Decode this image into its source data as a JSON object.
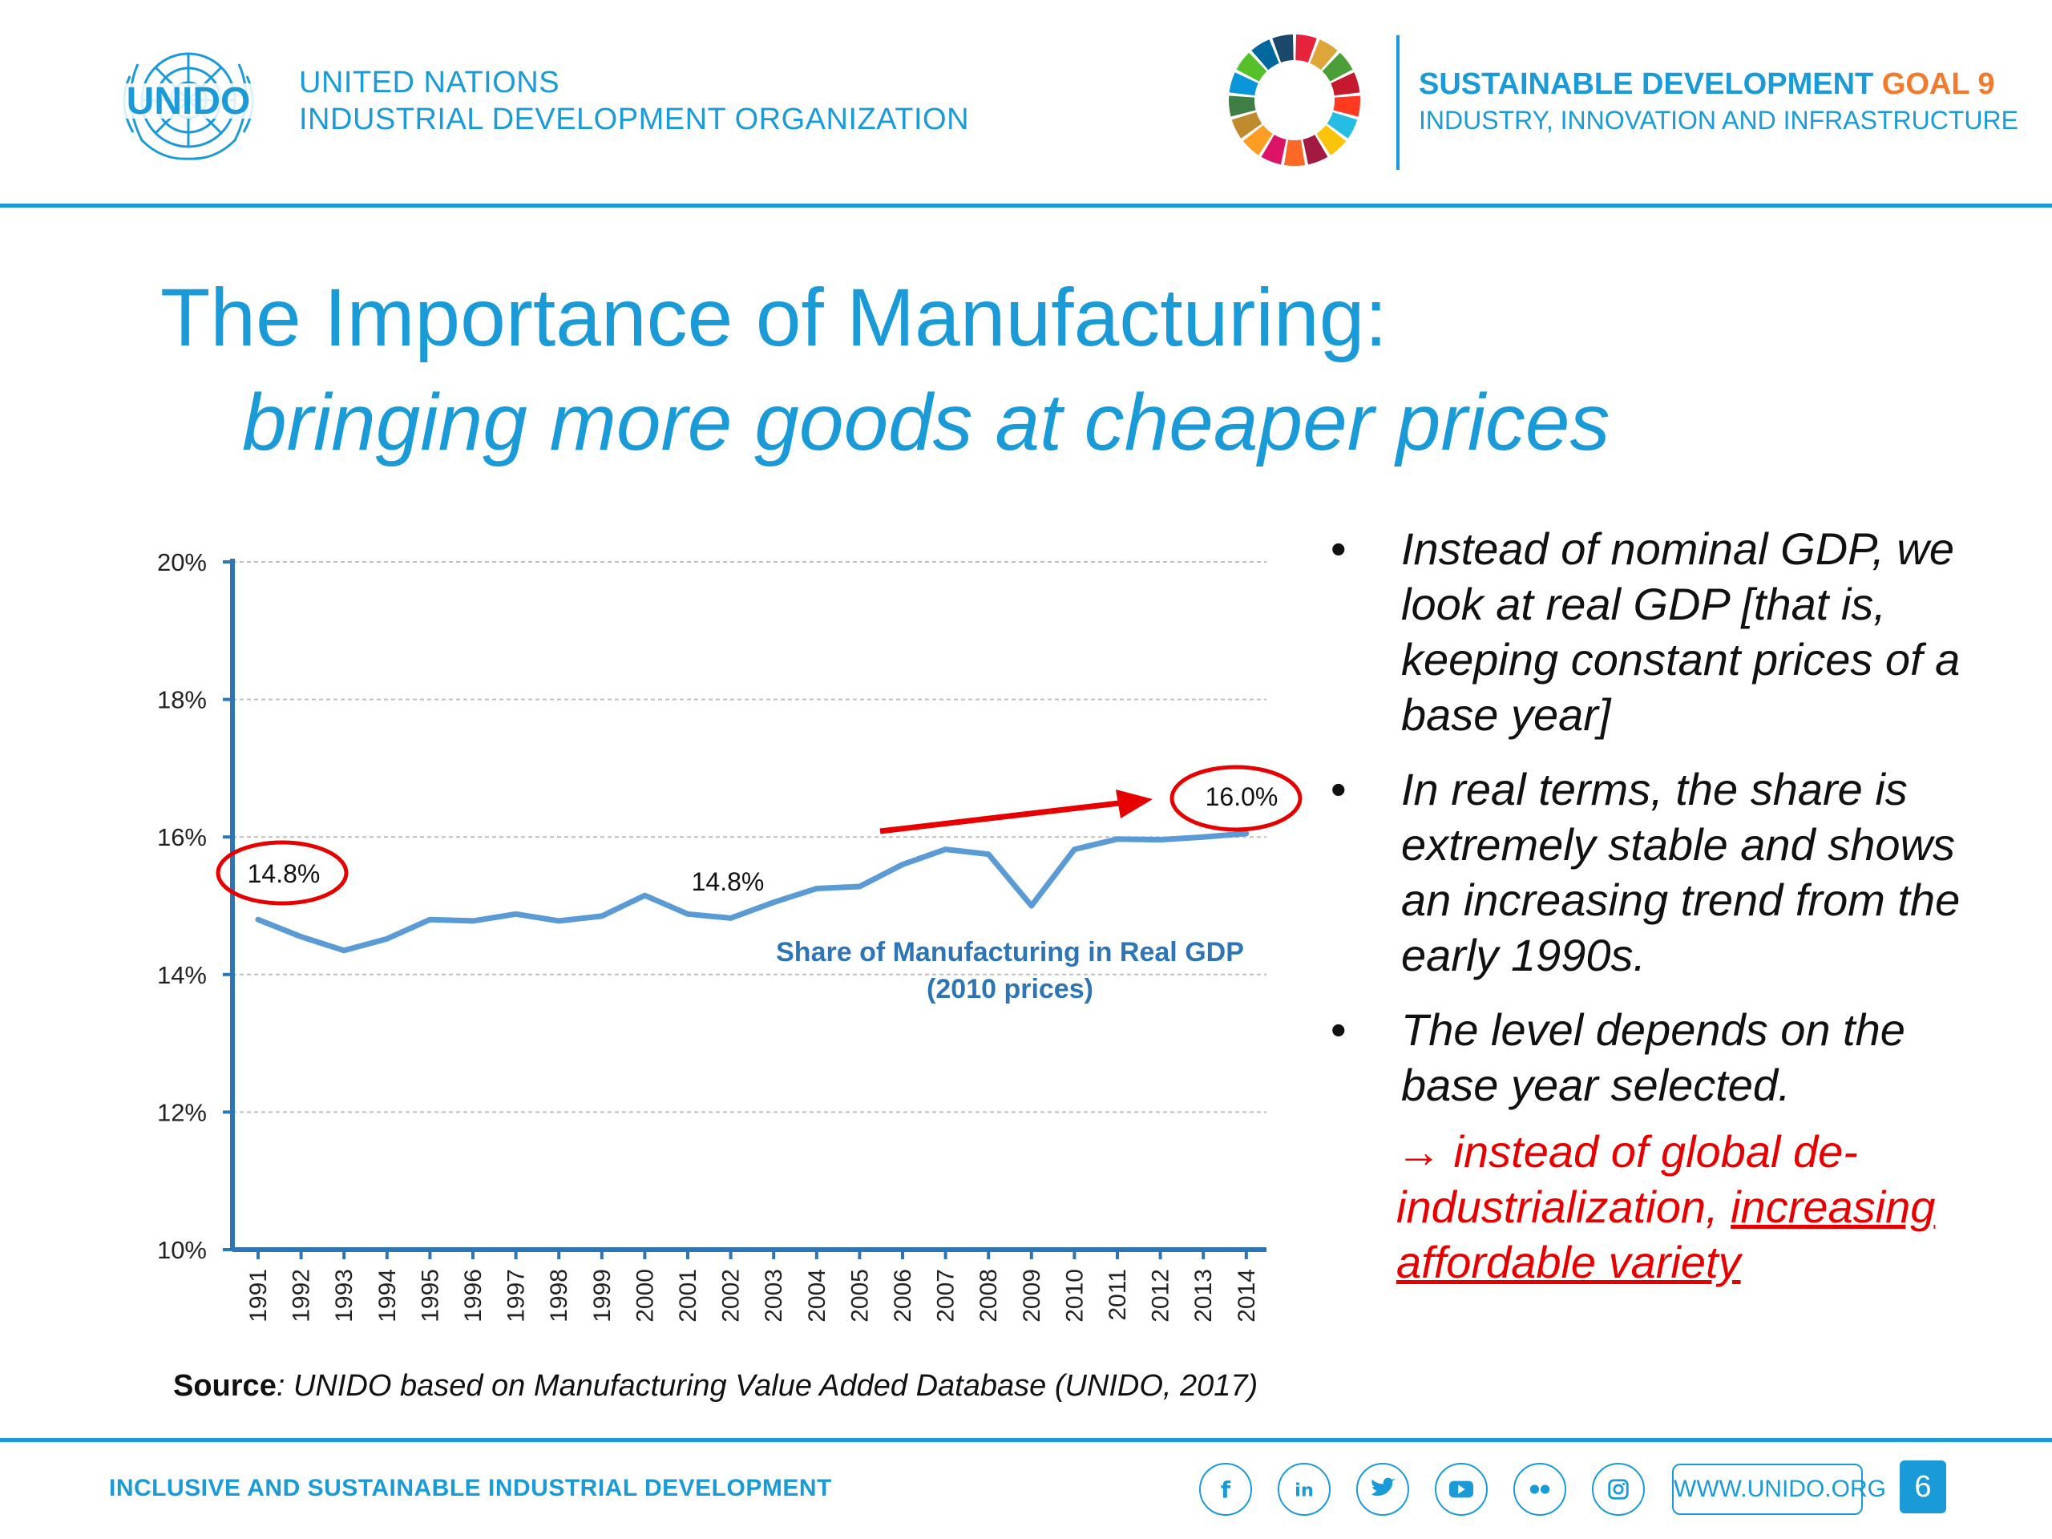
{
  "header": {
    "org_name_line1": "UNITED NATIONS",
    "org_name_line2": "INDUSTRIAL DEVELOPMENT ORGANIZATION",
    "logo_text": "UNIDO",
    "sdg_title_part1": "SUSTAINABLE DEVELOPMENT ",
    "sdg_title_part2": "GOAL 9",
    "sdg_subtitle": "INDUSTRY, INNOVATION AND INFRASTRUCTURE",
    "sdg_colors": [
      "#e5243b",
      "#dda63a",
      "#4c9f38",
      "#c5192d",
      "#ff3a21",
      "#26bde2",
      "#fcc30b",
      "#a21942",
      "#fd6925",
      "#dd1367",
      "#fd9d24",
      "#bf8b2e",
      "#3f7e44",
      "#0a97d9",
      "#56c02b",
      "#00689d",
      "#19486a"
    ]
  },
  "slide": {
    "title": "The Importance of Manufacturing:",
    "subtitle": "bringing more goods at cheaper prices"
  },
  "chart_data": {
    "type": "line",
    "x": [
      "1991",
      "1992",
      "1993",
      "1994",
      "1995",
      "1996",
      "1997",
      "1998",
      "1999",
      "2000",
      "2001",
      "2002",
      "2003",
      "2004",
      "2005",
      "2006",
      "2007",
      "2008",
      "2009",
      "2010",
      "2011",
      "2012",
      "2013",
      "2014"
    ],
    "series": [
      {
        "name": "Share of Manufacturing in Real GDP (2010 prices)",
        "values": [
          14.8,
          14.55,
          14.35,
          14.52,
          14.8,
          14.78,
          14.88,
          14.78,
          14.85,
          15.15,
          14.88,
          14.82,
          15.05,
          15.25,
          15.28,
          15.6,
          15.82,
          15.75,
          15.0,
          15.82,
          15.97,
          15.96,
          16.0,
          16.05
        ],
        "color": "#5b9bd5"
      }
    ],
    "series_label_line1": "Share of Manufacturing in Real GDP",
    "series_label_line2": "(2010 prices)",
    "ylim": [
      10,
      20
    ],
    "yticks": [
      10,
      12,
      14,
      16,
      18,
      20
    ],
    "ytick_labels": [
      "10%",
      "12%",
      "14%",
      "16%",
      "18%",
      "20%"
    ],
    "grid": true,
    "axis_color": "#2e75b6",
    "annotations": [
      {
        "text": "14.8%",
        "year": "1991",
        "circled": true
      },
      {
        "text": "14.8%",
        "year": "2002",
        "circled": false
      },
      {
        "text": "16.0%",
        "year": "2014",
        "circled": true
      }
    ],
    "trend_arrow_color": "#e60000",
    "highlight_color": "#e60000"
  },
  "source": {
    "label": "Source",
    "text": ":  UNIDO based on Manufacturing Value Added Database (UNIDO, 2017)"
  },
  "bullets": [
    {
      "marker": "•",
      "text": "Instead of nominal GDP, we look at real GDP [that is, keeping constant prices of a base year]"
    },
    {
      "marker": "•",
      "text": "In real terms, the share is extremely stable and shows an increasing trend from the early 1990s."
    },
    {
      "marker": "•",
      "text": "The level depends on the base year selected."
    }
  ],
  "conclusion": {
    "prefix": "→ instead of global de-industrialization, ",
    "underlined": "increasing affordable variety"
  },
  "footer": {
    "tagline": "INCLUSIVE AND SUSTAINABLE INDUSTRIAL DEVELOPMENT",
    "social_icons": [
      "facebook-icon",
      "linkedin-icon",
      "twitter-icon",
      "youtube-icon",
      "flickr-icon",
      "instagram-icon"
    ],
    "website": "WWW.UNIDO.ORG",
    "page_number": "6"
  }
}
